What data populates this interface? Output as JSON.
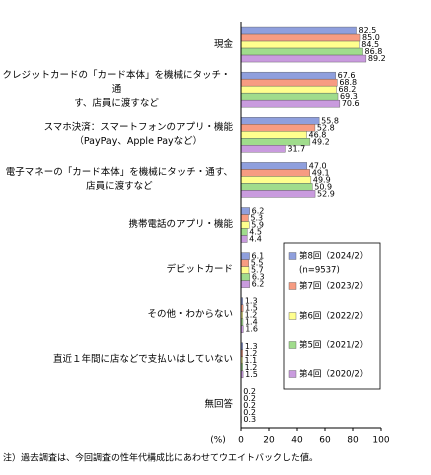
{
  "chart_data": {
    "type": "bar",
    "orientation": "horizontal",
    "categories": [
      "現金",
      "クレジットカードの「カード本体」を機械にタッチ・通\nす、店員に渡すなど",
      "スマホ決済：スマートフォンのアプリ・機能\n（PayPay、Apple Payなど）",
      "電子マネーの「カード本体」を機械にタッチ・通す、\n店員に渡すなど",
      "携帯電話のアプリ・機能",
      "デビットカード",
      "その他・わからない",
      "直近１年間に店などで支払いはしていない",
      "無回答"
    ],
    "series": [
      {
        "name": "第8回（2024/2）",
        "color": "#8f9fdd",
        "values": [
          82.5,
          67.6,
          55.8,
          47.0,
          6.2,
          6.1,
          1.3,
          1.3,
          0.2
        ],
        "value_labels": [
          "82.5",
          "67.6",
          "55.8",
          "47.0",
          "6.2",
          "6.1",
          "1.3",
          "1.3",
          "0.2"
        ]
      },
      {
        "name": "第7回（2023/2）",
        "color": "#f79c82",
        "values": [
          85.0,
          68.8,
          52.8,
          49.1,
          5.3,
          5.5,
          1.5,
          1.2,
          0.2
        ],
        "value_labels": [
          "85.0",
          "68.8",
          "52.8",
          "49.1",
          "5.3",
          "5.5",
          "1.5",
          "1.2",
          "0.2"
        ]
      },
      {
        "name": "第6回（2022/2）",
        "color": "#ffff8e",
        "values": [
          84.5,
          68.2,
          46.8,
          49.9,
          5.9,
          5.7,
          1.2,
          1.1,
          0.2
        ],
        "value_labels": [
          "84.5",
          "68.2",
          "46.8",
          "49.9",
          "5.9",
          "5.7",
          "1.2",
          "1.1",
          "0.2"
        ]
      },
      {
        "name": "第5回（2021/2）",
        "color": "#a0dc8c",
        "values": [
          86.8,
          69.3,
          49.2,
          50.9,
          4.5,
          6.3,
          1.4,
          1.2,
          0.2
        ],
        "value_labels": [
          "86.8",
          "69.3",
          "49.2",
          "50.9",
          "4.5",
          "6.3",
          "1.4",
          "1.2",
          "0.2"
        ]
      },
      {
        "name": "第4回（2020/2）",
        "color": "#c99bde",
        "values": [
          89.2,
          70.6,
          31.7,
          52.9,
          4.4,
          6.2,
          1.6,
          1.5,
          0.3
        ],
        "value_labels": [
          "89.2",
          "70.6",
          "31.7",
          "52.9",
          "4.4",
          "6.2",
          "1.6",
          "1.5",
          "0.3"
        ]
      }
    ],
    "legend_note": "(n=9537)",
    "xlabel": "(%)",
    "xlim": [
      0,
      100
    ],
    "xticks": [
      0,
      20,
      40,
      60,
      80,
      100
    ],
    "footnote": "注）過去調査は、今回調査の性年代構成比にあわせてウエイトバックした値。"
  }
}
